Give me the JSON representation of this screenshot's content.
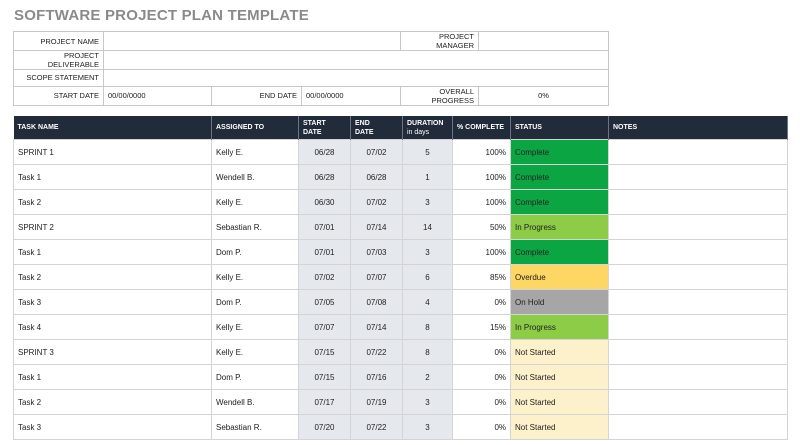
{
  "title": "SOFTWARE PROJECT PLAN TEMPLATE",
  "info": {
    "project_name_label": "PROJECT NAME",
    "project_name": "",
    "project_manager_label": "PROJECT MANAGER",
    "project_manager": "",
    "deliverable_label": "PROJECT DELIVERABLE",
    "deliverable": "",
    "scope_label": "SCOPE STATEMENT",
    "scope": "",
    "start_date_label": "START DATE",
    "start_date": "00/00/0000",
    "end_date_label": "END DATE",
    "end_date": "00/00/0000",
    "overall_progress_label": "OVERALL PROGRESS",
    "overall_progress": "0%"
  },
  "headers": {
    "task": "TASK NAME",
    "assigned": "ASSIGNED TO",
    "start1": "START",
    "start2": "DATE",
    "end1": "END",
    "end2": "DATE",
    "duration1": "DURATION",
    "duration2": "in days",
    "pct": "% COMPLETE",
    "status": "STATUS",
    "notes": "NOTES"
  },
  "status_colors": {
    "Complete": "#0ca543",
    "In Progress": "#8ccc46",
    "Overdue": "#fdd664",
    "On Hold": "#a6a6a6",
    "Not Started": "#fdf1cc"
  },
  "rows": [
    {
      "task": "SPRINT 1",
      "assigned": "Kelly E.",
      "start": "06/28",
      "end": "07/02",
      "duration": "5",
      "pct": "100%",
      "status": "Complete",
      "notes": ""
    },
    {
      "task": "Task 1",
      "assigned": "Wendell B.",
      "start": "06/28",
      "end": "06/28",
      "duration": "1",
      "pct": "100%",
      "status": "Complete",
      "notes": ""
    },
    {
      "task": "Task 2",
      "assigned": "Kelly E.",
      "start": "06/30",
      "end": "07/02",
      "duration": "3",
      "pct": "100%",
      "status": "Complete",
      "notes": ""
    },
    {
      "task": "SPRINT 2",
      "assigned": "Sebastian R.",
      "start": "07/01",
      "end": "07/14",
      "duration": "14",
      "pct": "50%",
      "status": "In Progress",
      "notes": ""
    },
    {
      "task": "Task 1",
      "assigned": "Dom P.",
      "start": "07/01",
      "end": "07/03",
      "duration": "3",
      "pct": "100%",
      "status": "Complete",
      "notes": ""
    },
    {
      "task": "Task 2",
      "assigned": "Kelly E.",
      "start": "07/02",
      "end": "07/07",
      "duration": "6",
      "pct": "85%",
      "status": "Overdue",
      "notes": ""
    },
    {
      "task": "Task 3",
      "assigned": "Dom P.",
      "start": "07/05",
      "end": "07/08",
      "duration": "4",
      "pct": "0%",
      "status": "On Hold",
      "notes": ""
    },
    {
      "task": "Task 4",
      "assigned": "Kelly E.",
      "start": "07/07",
      "end": "07/14",
      "duration": "8",
      "pct": "15%",
      "status": "In Progress",
      "notes": ""
    },
    {
      "task": "SPRINT 3",
      "assigned": "Kelly E.",
      "start": "07/15",
      "end": "07/22",
      "duration": "8",
      "pct": "0%",
      "status": "Not Started",
      "notes": ""
    },
    {
      "task": "Task 1",
      "assigned": "Dom P.",
      "start": "07/15",
      "end": "07/16",
      "duration": "2",
      "pct": "0%",
      "status": "Not Started",
      "notes": ""
    },
    {
      "task": "Task 2",
      "assigned": "Wendell B.",
      "start": "07/17",
      "end": "07/19",
      "duration": "3",
      "pct": "0%",
      "status": "Not Started",
      "notes": ""
    },
    {
      "task": "Task 3",
      "assigned": "Sebastian R.",
      "start": "07/20",
      "end": "07/22",
      "duration": "3",
      "pct": "0%",
      "status": "Not Started",
      "notes": ""
    }
  ]
}
